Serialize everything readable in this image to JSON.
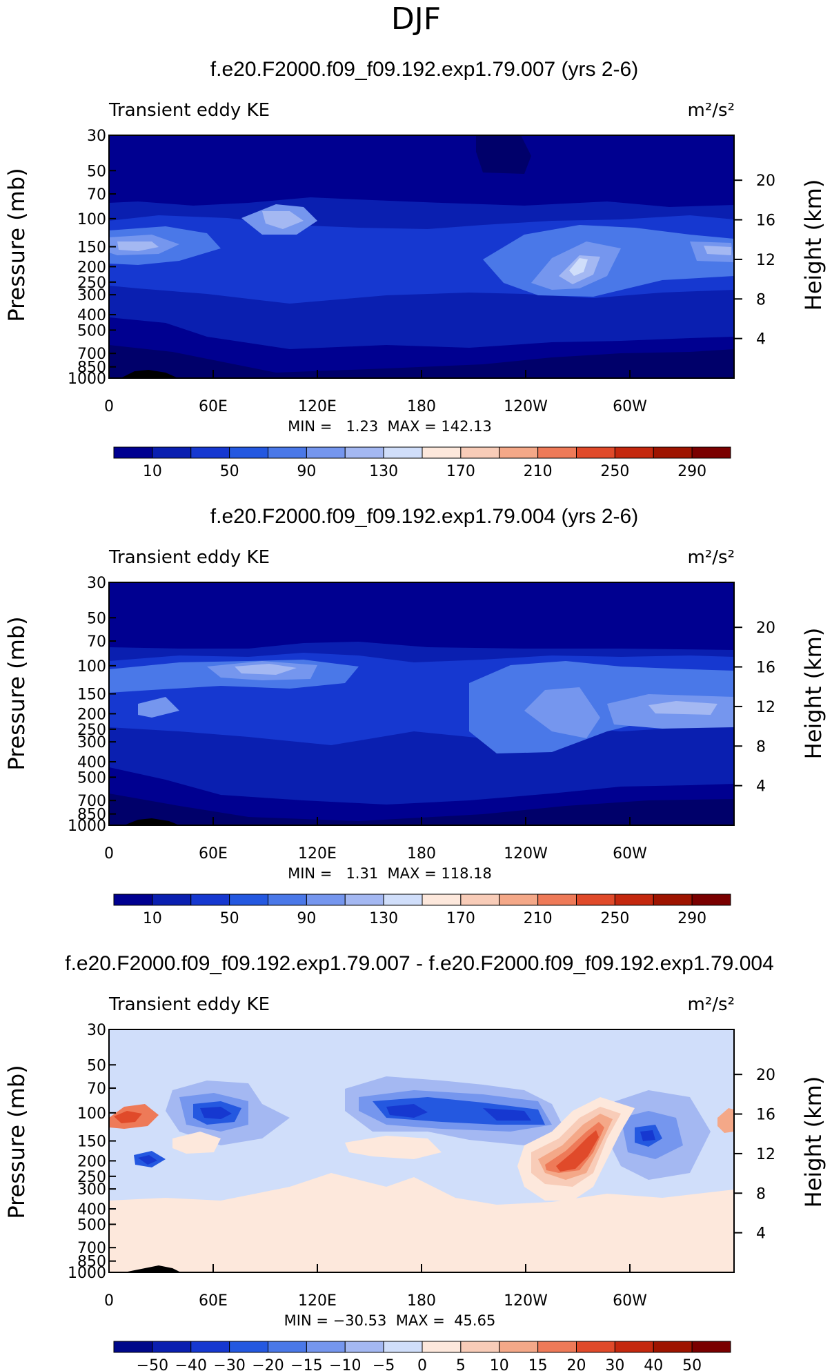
{
  "page_title": "DJF",
  "legend_labels_abs": [
    "10",
    "50",
    "90",
    "130",
    "170",
    "210",
    "250",
    "290"
  ],
  "legend_labels_diff": [
    "−50",
    "−40",
    "−30",
    "−20",
    "−15",
    "−10",
    "−5",
    "0",
    "5",
    "10",
    "15",
    "20",
    "30",
    "40",
    "50"
  ],
  "colors": {
    "abs_scale": [
      "#000090",
      "#0a1fb0",
      "#1638d0",
      "#2458e0",
      "#4a78e8",
      "#7596ee",
      "#a4b8f2",
      "#d0defa",
      "#fde8dc",
      "#f8ccb8",
      "#f4a888",
      "#ee7a58",
      "#e04a2a",
      "#c4280e",
      "#9e1400",
      "#7a0000"
    ],
    "diff_scale": [
      "#00088a",
      "#0a1fb0",
      "#1638d0",
      "#2458e0",
      "#4a78e8",
      "#7596ee",
      "#a4b8f2",
      "#d0defa",
      "#fde8dc",
      "#f8ccb8",
      "#f4a888",
      "#ee7a58",
      "#e04a2a",
      "#c4280e",
      "#9e1400",
      "#7a0000"
    ]
  },
  "chart_data": [
    {
      "type": "heatmap",
      "title": "f.e20.F2000.f09_f09.192.exp1.79.007 (yrs 2-6)",
      "left_label": "Transient eddy KE",
      "units": "m²/s²",
      "ylabel": "Pressure (mb)",
      "y2label": "Height (km)",
      "xtick_labels": [
        "0",
        "60E",
        "120E",
        "180",
        "120W",
        "60W"
      ],
      "ytick_labels": [
        "30",
        "50",
        "70",
        "100",
        "150",
        "200",
        "250",
        "300",
        "400",
        "500",
        "700",
        "850",
        "1000"
      ],
      "y2tick_labels": [
        "20",
        "16",
        "12",
        "8",
        "4"
      ],
      "stats": "MIN =   1.23  MAX = 142.13",
      "min": 1.23,
      "max": 142.13
    },
    {
      "type": "heatmap",
      "title": "f.e20.F2000.f09_f09.192.exp1.79.004 (yrs 2-6)",
      "left_label": "Transient eddy KE",
      "units": "m²/s²",
      "ylabel": "Pressure (mb)",
      "y2label": "Height (km)",
      "xtick_labels": [
        "0",
        "60E",
        "120E",
        "180",
        "120W",
        "60W"
      ],
      "ytick_labels": [
        "30",
        "50",
        "70",
        "100",
        "150",
        "200",
        "250",
        "300",
        "400",
        "500",
        "700",
        "850",
        "1000"
      ],
      "y2tick_labels": [
        "20",
        "16",
        "12",
        "8",
        "4"
      ],
      "stats": "MIN =   1.31  MAX = 118.18",
      "min": 1.31,
      "max": 118.18
    },
    {
      "type": "heatmap",
      "title": "f.e20.F2000.f09_f09.192.exp1.79.007 - f.e20.F2000.f09_f09.192.exp1.79.004",
      "left_label": "Transient eddy KE",
      "units": "m²/s²",
      "ylabel": "Pressure (mb)",
      "y2label": "Height (km)",
      "xtick_labels": [
        "0",
        "60E",
        "120E",
        "180",
        "120W",
        "60W"
      ],
      "ytick_labels": [
        "30",
        "50",
        "70",
        "100",
        "150",
        "200",
        "250",
        "300",
        "400",
        "500",
        "700",
        "850",
        "1000"
      ],
      "y2tick_labels": [
        "20",
        "16",
        "12",
        "8",
        "4"
      ],
      "stats": "MIN = −30.53  MAX =  45.65",
      "min": -30.53,
      "max": 45.65
    }
  ]
}
